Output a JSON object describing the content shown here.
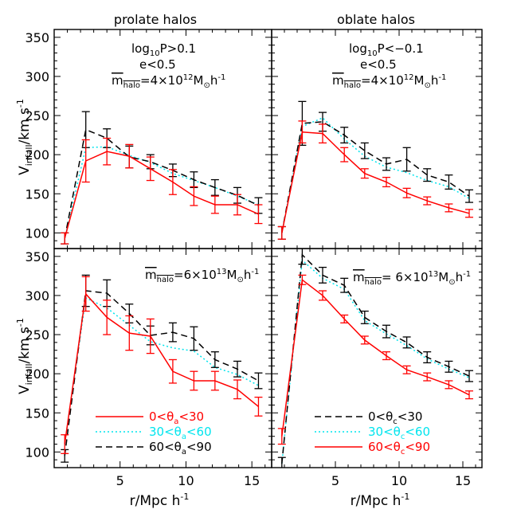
{
  "colors": {
    "solid": "#ff0000",
    "dotted": "#00e5ee",
    "dashed": "#000000"
  },
  "chart_data": [
    {
      "type": "line",
      "panel": "top-left",
      "title": "prolate halos",
      "annotations": [
        "log10P>0.1",
        "e<0.5",
        "m_halo=4×10^12 M⊙ h^-1"
      ],
      "xlim": [
        0,
        16.5
      ],
      "ylim": [
        80,
        360
      ],
      "x": [
        0.8,
        2.4,
        4.0,
        5.7,
        7.3,
        9.0,
        10.6,
        12.2,
        13.9,
        15.5
      ],
      "series": [
        {
          "style": "solid",
          "values": [
            93,
            192,
            204,
            198,
            182,
            165,
            147,
            136,
            136,
            124
          ],
          "errors": [
            7,
            27,
            17,
            15,
            15,
            16,
            12,
            11,
            13,
            12
          ]
        },
        {
          "style": "dotted",
          "values": [
            93,
            209,
            210,
            199,
            190,
            176,
            167,
            158,
            147,
            136
          ],
          "errors": []
        },
        {
          "style": "dashed",
          "values": [
            93,
            232,
            221,
            197,
            191,
            180,
            168,
            158,
            148,
            135
          ],
          "errors": [
            7,
            23,
            12,
            14,
            9,
            8,
            10,
            10,
            10,
            10
          ]
        }
      ]
    },
    {
      "type": "line",
      "panel": "top-right",
      "title": "oblate halos",
      "annotations": [
        "log10P<−0.1",
        "e<0.5",
        "m_halo=4×10^12 M⊙ h^-1"
      ],
      "xlim": [
        0,
        16.5
      ],
      "ylim": [
        80,
        360
      ],
      "x": [
        0.8,
        2.4,
        4.0,
        5.7,
        7.3,
        9.0,
        10.6,
        12.2,
        13.9,
        15.5
      ],
      "series": [
        {
          "style": "solid",
          "values": [
            100,
            229,
            227,
            200,
            176,
            165,
            151,
            141,
            132,
            125
          ],
          "errors": [
            8,
            14,
            12,
            9,
            6,
            6,
            6,
            5,
            5,
            5
          ]
        },
        {
          "style": "dotted",
          "values": [
            100,
            236,
            247,
            220,
            198,
            184,
            177,
            167,
            159,
            144
          ],
          "errors": []
        },
        {
          "style": "dashed",
          "values": [
            100,
            240,
            242,
            225,
            205,
            188,
            194,
            174,
            165,
            147
          ],
          "errors": [
            8,
            28,
            12,
            10,
            10,
            8,
            15,
            8,
            9,
            8
          ]
        }
      ]
    },
    {
      "type": "line",
      "panel": "bottom-left",
      "annotations": [
        "m_halo=6×10^13 M⊙ h^-1"
      ],
      "legend": [
        "0<θa<30",
        "30<θa<60",
        "60<θa<90"
      ],
      "xlim": [
        0,
        16.5
      ],
      "ylim": [
        80,
        360
      ],
      "x": [
        0.8,
        2.4,
        4.0,
        5.7,
        7.3,
        9.0,
        10.6,
        12.2,
        13.9,
        15.5
      ],
      "series": [
        {
          "style": "solid",
          "values": [
            110,
            302,
            272,
            252,
            248,
            203,
            191,
            191,
            180,
            158
          ],
          "errors": [
            12,
            22,
            22,
            22,
            22,
            15,
            12,
            12,
            12,
            12
          ]
        },
        {
          "style": "dotted",
          "values": [
            110,
            297,
            284,
            262,
            241,
            233,
            229,
            208,
            199,
            185
          ],
          "errors": []
        },
        {
          "style": "dashed",
          "values": [
            95,
            306,
            303,
            277,
            249,
            253,
            245,
            218,
            206,
            191
          ],
          "errors": [
            8,
            20,
            17,
            12,
            12,
            12,
            15,
            10,
            10,
            10
          ]
        }
      ]
    },
    {
      "type": "line",
      "panel": "bottom-right",
      "annotations": [
        "m_halo= 6×10^13 M⊙ h^-1"
      ],
      "legend": [
        "0<θc<30",
        "30<θc<60",
        "60<θc<90"
      ],
      "xlim": [
        0,
        16.5
      ],
      "ylim": [
        80,
        360
      ],
      "x": [
        0.8,
        2.4,
        4.0,
        5.7,
        7.3,
        9.0,
        10.6,
        12.2,
        13.9,
        15.5
      ],
      "series": [
        {
          "style": "solid",
          "values": [
            120,
            320,
            300,
            270,
            243,
            223,
            205,
            196,
            186,
            173
          ],
          "errors": [
            10,
            6,
            6,
            5,
            5,
            5,
            5,
            5,
            5,
            5
          ]
        },
        {
          "style": "dotted",
          "values": [
            85,
            345,
            322,
            308,
            268,
            251,
            236,
            219,
            206,
            195
          ],
          "errors": []
        },
        {
          "style": "dashed",
          "values": [
            85,
            352,
            326,
            313,
            272,
            254,
            240,
            221,
            209,
            197
          ],
          "errors": [
            8,
            12,
            10,
            9,
            8,
            8,
            7,
            7,
            7,
            7
          ]
        }
      ]
    }
  ]
}
